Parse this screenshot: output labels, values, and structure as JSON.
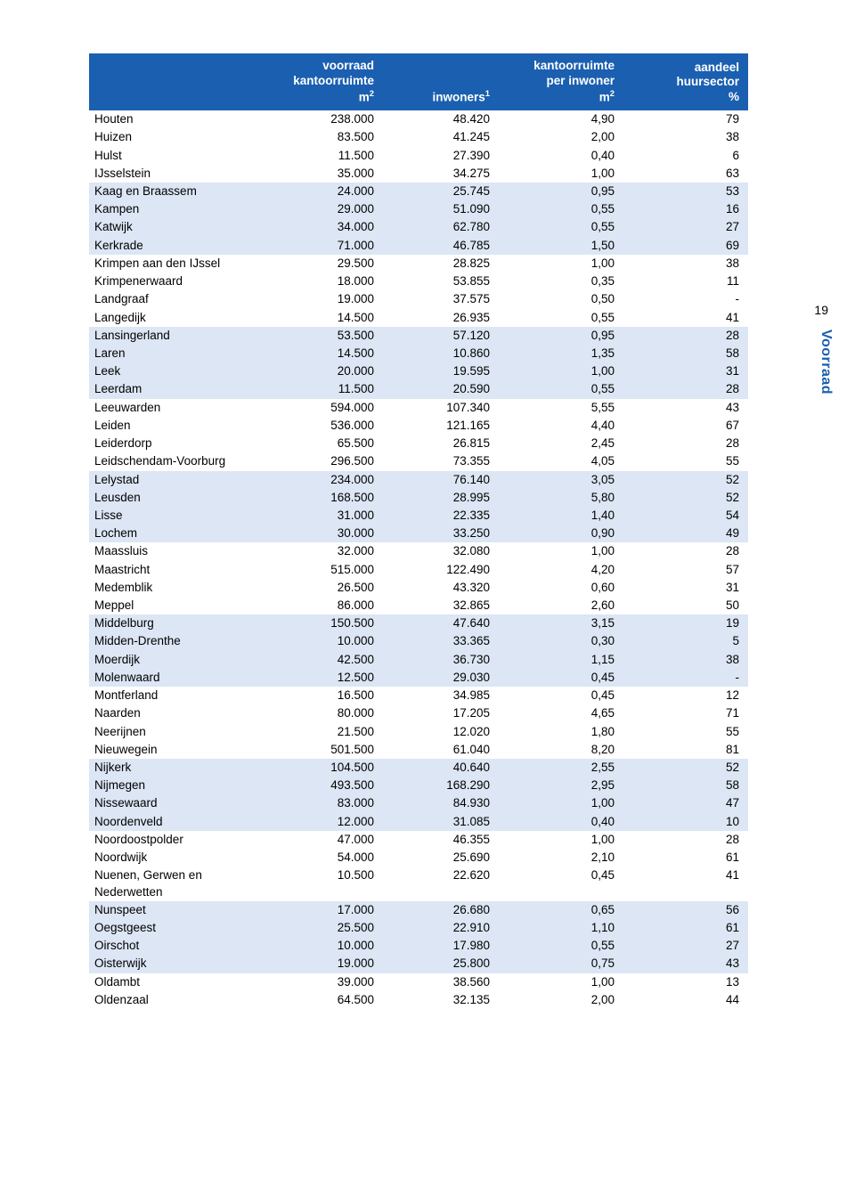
{
  "page_number": "19",
  "side_tab": "Voorraad",
  "colors": {
    "header_bg": "#1b5fb0",
    "header_fg": "#ffffff",
    "alt_row_bg": "#dce6f4",
    "text": "#000000",
    "side_tab": "#1b5fb0"
  },
  "headers": {
    "name": "",
    "voorraad_l1": "voorraad",
    "voorraad_l2": "kantoorruimte",
    "voorraad_l3": "m",
    "inwoners": "inwoners",
    "per_l1": "kantoorruimte",
    "per_l2": "per inwoner",
    "per_l3": "m",
    "aandeel_l1": "aandeel",
    "aandeel_l2": "huursector",
    "aandeel_l3": "%"
  },
  "groups": [
    [
      [
        "Houten",
        "238.000",
        "48.420",
        "4,90",
        "79"
      ],
      [
        "Huizen",
        "83.500",
        "41.245",
        "2,00",
        "38"
      ],
      [
        "Hulst",
        "11.500",
        "27.390",
        "0,40",
        "6"
      ],
      [
        "IJsselstein",
        "35.000",
        "34.275",
        "1,00",
        "63"
      ]
    ],
    [
      [
        "Kaag en Braassem",
        "24.000",
        "25.745",
        "0,95",
        "53"
      ],
      [
        "Kampen",
        "29.000",
        "51.090",
        "0,55",
        "16"
      ],
      [
        "Katwijk",
        "34.000",
        "62.780",
        "0,55",
        "27"
      ],
      [
        "Kerkrade",
        "71.000",
        "46.785",
        "1,50",
        "69"
      ]
    ],
    [
      [
        "Krimpen aan den IJssel",
        "29.500",
        "28.825",
        "1,00",
        "38"
      ],
      [
        "Krimpenerwaard",
        "18.000",
        "53.855",
        "0,35",
        "11"
      ],
      [
        "Landgraaf",
        "19.000",
        "37.575",
        "0,50",
        "-"
      ],
      [
        "Langedijk",
        "14.500",
        "26.935",
        "0,55",
        "41"
      ]
    ],
    [
      [
        "Lansingerland",
        "53.500",
        "57.120",
        "0,95",
        "28"
      ],
      [
        "Laren",
        "14.500",
        "10.860",
        "1,35",
        "58"
      ],
      [
        "Leek",
        "20.000",
        "19.595",
        "1,00",
        "31"
      ],
      [
        "Leerdam",
        "11.500",
        "20.590",
        "0,55",
        "28"
      ]
    ],
    [
      [
        "Leeuwarden",
        "594.000",
        "107.340",
        "5,55",
        "43"
      ],
      [
        "Leiden",
        "536.000",
        "121.165",
        "4,40",
        "67"
      ],
      [
        "Leiderdorp",
        "65.500",
        "26.815",
        "2,45",
        "28"
      ],
      [
        "Leidschendam-Voorburg",
        "296.500",
        "73.355",
        "4,05",
        "55"
      ]
    ],
    [
      [
        "Lelystad",
        "234.000",
        "76.140",
        "3,05",
        "52"
      ],
      [
        "Leusden",
        "168.500",
        "28.995",
        "5,80",
        "52"
      ],
      [
        "Lisse",
        "31.000",
        "22.335",
        "1,40",
        "54"
      ],
      [
        "Lochem",
        "30.000",
        "33.250",
        "0,90",
        "49"
      ]
    ],
    [
      [
        "Maassluis",
        "32.000",
        "32.080",
        "1,00",
        "28"
      ],
      [
        "Maastricht",
        "515.000",
        "122.490",
        "4,20",
        "57"
      ],
      [
        "Medemblik",
        "26.500",
        "43.320",
        "0,60",
        "31"
      ],
      [
        "Meppel",
        "86.000",
        "32.865",
        "2,60",
        "50"
      ]
    ],
    [
      [
        "Middelburg",
        "150.500",
        "47.640",
        "3,15",
        "19"
      ],
      [
        "Midden-Drenthe",
        "10.000",
        "33.365",
        "0,30",
        "5"
      ],
      [
        "Moerdijk",
        "42.500",
        "36.730",
        "1,15",
        "38"
      ],
      [
        "Molenwaard",
        "12.500",
        "29.030",
        "0,45",
        "-"
      ]
    ],
    [
      [
        "Montferland",
        "16.500",
        "34.985",
        "0,45",
        "12"
      ],
      [
        "Naarden",
        "80.000",
        "17.205",
        "4,65",
        "71"
      ],
      [
        "Neerijnen",
        "21.500",
        "12.020",
        "1,80",
        "55"
      ],
      [
        "Nieuwegein",
        "501.500",
        "61.040",
        "8,20",
        "81"
      ]
    ],
    [
      [
        "Nijkerk",
        "104.500",
        "40.640",
        "2,55",
        "52"
      ],
      [
        "Nijmegen",
        "493.500",
        "168.290",
        "2,95",
        "58"
      ],
      [
        "Nissewaard",
        "83.000",
        "84.930",
        "1,00",
        "47"
      ],
      [
        "Noordenveld",
        "12.000",
        "31.085",
        "0,40",
        "10"
      ]
    ],
    [
      [
        "Noordoostpolder",
        "47.000",
        "46.355",
        "1,00",
        "28"
      ],
      [
        "Noordwijk",
        "54.000",
        "25.690",
        "2,10",
        "61"
      ],
      [
        "Nuenen, Gerwen en Nederwetten",
        "10.500",
        "22.620",
        "0,45",
        "41"
      ]
    ],
    [
      [
        "Nunspeet",
        "17.000",
        "26.680",
        "0,65",
        "56"
      ],
      [
        "Oegstgeest",
        "25.500",
        "22.910",
        "1,10",
        "61"
      ],
      [
        "Oirschot",
        "10.000",
        "17.980",
        "0,55",
        "27"
      ],
      [
        "Oisterwijk",
        "19.000",
        "25.800",
        "0,75",
        "43"
      ]
    ],
    [
      [
        "Oldambt",
        "39.000",
        "38.560",
        "1,00",
        "13"
      ],
      [
        "Oldenzaal",
        "64.500",
        "32.135",
        "2,00",
        "44"
      ]
    ]
  ]
}
